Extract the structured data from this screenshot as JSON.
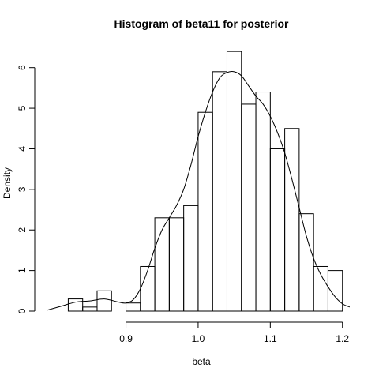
{
  "chart_data": {
    "type": "bar",
    "title": "Histogram of beta11 for posterior",
    "xlabel": "beta",
    "ylabel": "Density",
    "xlim": [
      0.79,
      1.22
    ],
    "ylim": [
      0,
      6.5
    ],
    "x_ticks": [
      0.9,
      1.0,
      1.1,
      1.2
    ],
    "x_tick_labels": [
      "0.9",
      "1.0",
      "1.1",
      "1.2"
    ],
    "y_ticks": [
      0,
      1,
      2,
      3,
      4,
      5,
      6
    ],
    "y_tick_labels": [
      "0",
      "1",
      "2",
      "3",
      "4",
      "5",
      "6"
    ],
    "bin_width": 0.02,
    "bins": [
      {
        "x0": 0.82,
        "x1": 0.84,
        "density": 0.3
      },
      {
        "x0": 0.84,
        "x1": 0.86,
        "density": 0.1
      },
      {
        "x0": 0.86,
        "x1": 0.88,
        "density": 0.5
      },
      {
        "x0": 0.88,
        "x1": 0.9,
        "density": 0.0
      },
      {
        "x0": 0.9,
        "x1": 0.92,
        "density": 0.2
      },
      {
        "x0": 0.92,
        "x1": 0.94,
        "density": 1.1
      },
      {
        "x0": 0.94,
        "x1": 0.96,
        "density": 2.3
      },
      {
        "x0": 0.96,
        "x1": 0.98,
        "density": 2.3
      },
      {
        "x0": 0.98,
        "x1": 1.0,
        "density": 2.6
      },
      {
        "x0": 1.0,
        "x1": 1.02,
        "density": 4.9
      },
      {
        "x0": 1.02,
        "x1": 1.04,
        "density": 5.9
      },
      {
        "x0": 1.04,
        "x1": 1.06,
        "density": 6.4
      },
      {
        "x0": 1.06,
        "x1": 1.08,
        "density": 5.1
      },
      {
        "x0": 1.08,
        "x1": 1.1,
        "density": 5.4
      },
      {
        "x0": 1.1,
        "x1": 1.12,
        "density": 4.0
      },
      {
        "x0": 1.12,
        "x1": 1.14,
        "density": 4.5
      },
      {
        "x0": 1.14,
        "x1": 1.16,
        "density": 2.4
      },
      {
        "x0": 1.16,
        "x1": 1.18,
        "density": 1.1
      },
      {
        "x0": 1.18,
        "x1": 1.2,
        "density": 1.0
      }
    ],
    "density_curve": {
      "x": [
        0.79,
        0.81,
        0.83,
        0.85,
        0.87,
        0.89,
        0.9,
        0.91,
        0.92,
        0.93,
        0.94,
        0.95,
        0.96,
        0.97,
        0.98,
        0.99,
        1.0,
        1.01,
        1.02,
        1.03,
        1.04,
        1.05,
        1.06,
        1.07,
        1.08,
        1.09,
        1.1,
        1.11,
        1.12,
        1.13,
        1.14,
        1.15,
        1.16,
        1.17,
        1.18,
        1.19,
        1.2,
        1.21
      ],
      "y": [
        0.02,
        0.12,
        0.22,
        0.25,
        0.3,
        0.22,
        0.2,
        0.28,
        0.55,
        1.0,
        1.55,
        2.0,
        2.3,
        2.6,
        3.0,
        3.6,
        4.3,
        4.9,
        5.4,
        5.75,
        5.88,
        5.9,
        5.8,
        5.55,
        5.3,
        5.1,
        4.8,
        4.4,
        3.9,
        3.25,
        2.55,
        1.85,
        1.3,
        0.9,
        0.6,
        0.35,
        0.18,
        0.1
      ]
    }
  }
}
